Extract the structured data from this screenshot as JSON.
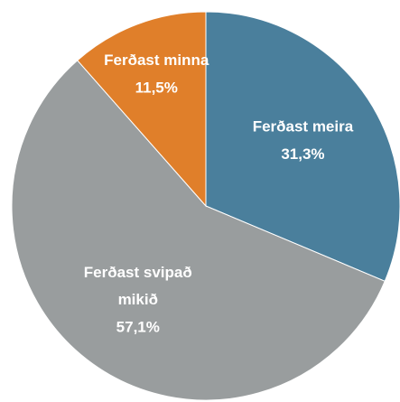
{
  "chart_data": {
    "type": "pie",
    "categories": [
      "Ferðast meira",
      "Ferðast svipað mikið",
      "Ferðast minna"
    ],
    "values": [
      31.3,
      57.1,
      11.5
    ],
    "value_labels": [
      "31,3%",
      "57,1%",
      "11,5%"
    ],
    "colors": [
      "#4a7f9c",
      "#999d9e",
      "#e07f2a"
    ]
  }
}
